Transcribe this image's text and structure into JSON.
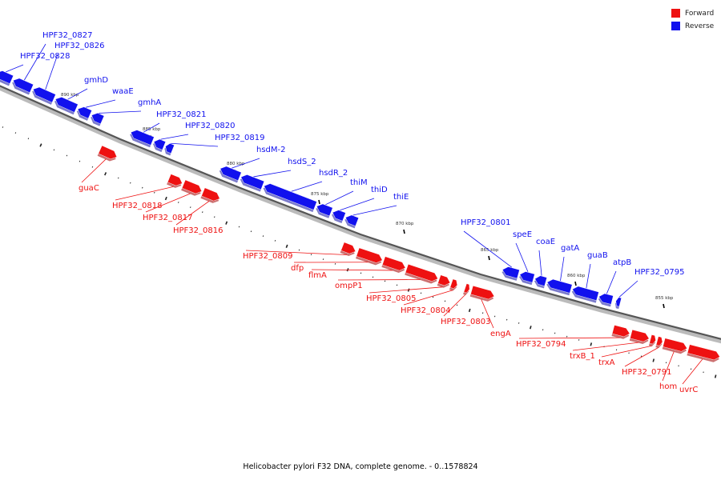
{
  "colors": {
    "forward": "#ee1111",
    "reverse": "#1111ee",
    "backbone": "#777777"
  },
  "legend": [
    {
      "label": "Forward",
      "color": "#ee1111"
    },
    {
      "label": "Reverse",
      "color": "#1111ee"
    }
  ],
  "caption": "Helicobacter pylori F32 DNA, complete genome. - 0..1578824",
  "scale_labels": [
    "890 kbp",
    "885 kbp",
    "880 kbp",
    "875 kbp",
    "870 kbp",
    "865 kbp",
    "860 kbp",
    "855 kbp"
  ],
  "reverse_genes": [
    "HPF32_0828",
    "HPF32_0827",
    "HPF32_0826",
    "gmhD",
    "waaE",
    "gmhA",
    "HPF32_0821",
    "HPF32_0820",
    "HPF32_0819",
    "hsdM-2",
    "hsdS_2",
    "hsdR_2",
    "thiM",
    "thiD",
    "thiE",
    "HPF32_0801",
    "speE",
    "coaE",
    "gatA",
    "guaB",
    "atpB",
    "HPF32_0795"
  ],
  "forward_genes": [
    "guaC",
    "HPF32_0818",
    "HPF32_0817",
    "HPF32_0816",
    "HPF32_0809",
    "dfp",
    "flmA",
    "ompP1",
    "HPF32_0805",
    "HPF32_0804",
    "HPF32_0803",
    "engA",
    "HPF32_0794",
    "trxB_1",
    "trxA",
    "HPF32_0791",
    "hom",
    "uvrC"
  ]
}
